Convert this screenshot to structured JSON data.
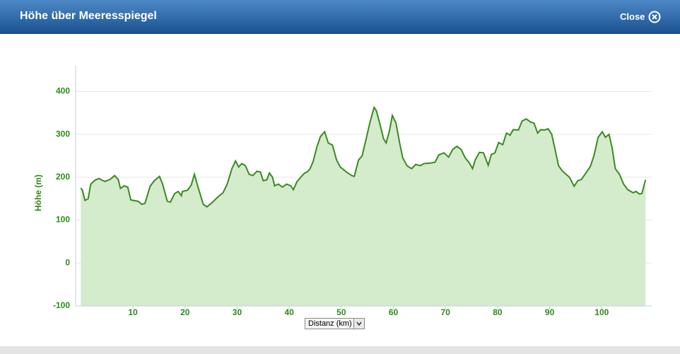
{
  "header": {
    "title": "Höhe über Meeresspiegel",
    "close": "Close"
  },
  "control": {
    "label": "Distanz (km)"
  },
  "chart_data": {
    "type": "area",
    "y_label": "Höhe (m)",
    "color": "#3a8a1f",
    "fill": "#d4ebcc",
    "grid": true,
    "xlim": [
      -1,
      110
    ],
    "ylim": [
      -100,
      460
    ],
    "xticks": [
      10,
      20,
      30,
      40,
      50,
      60,
      70,
      80,
      90,
      100
    ],
    "yticks": [
      -100,
      0,
      100,
      200,
      300,
      400
    ],
    "x": [
      0,
      0.3,
      0.8,
      1.4,
      1.9,
      2.8,
      3.5,
      4.6,
      5.6,
      6.5,
      7.2,
      7.6,
      8.3,
      9,
      9.6,
      11,
      11.7,
      12.3,
      13.3,
      14.1,
      15.1,
      15.7,
      16.6,
      17.2,
      18,
      18.7,
      19.3,
      19.5,
      20.5,
      21.2,
      21.8,
      22.5,
      23.5,
      24.2,
      25.2,
      26.3,
      27.3,
      28.1,
      29,
      29.7,
      30.3,
      30.9,
      31.6,
      32.3,
      33,
      33.8,
      34.5,
      35,
      35.7,
      36.2,
      36.8,
      37.2,
      37.9,
      38.7,
      39.5,
      40.3,
      40.8,
      41.5,
      42.2,
      42.9,
      43.6,
      44,
      44.6,
      45.3,
      46,
      46.8,
      47.5,
      48.3,
      49.1,
      49.8,
      51,
      52,
      52.5,
      53.3,
      54,
      54.7,
      55.5,
      56.3,
      56.7,
      57.4,
      58.1,
      58.6,
      59.2,
      59.8,
      60.5,
      61.2,
      61.8,
      62.6,
      63.5,
      64.3,
      65.1,
      65.9,
      67,
      68,
      68.7,
      69.7,
      70.6,
      71.4,
      72.2,
      73,
      73.8,
      74.6,
      75.2,
      75.7,
      76.5,
      77.3,
      78.2,
      78.8,
      79.5,
      80.2,
      81,
      81.7,
      82.4,
      83,
      84,
      84.7,
      85.5,
      86.3,
      87,
      87.7,
      88.3,
      89,
      89.7,
      90.4,
      91,
      91.7,
      92.4,
      93.8,
      94.7,
      95.4,
      96.1,
      96.9,
      97.8,
      98.5,
      99.3,
      100.1,
      100.7,
      101.4,
      102,
      102.6,
      103.4,
      104.2,
      105,
      106,
      106.6,
      107.2,
      107.7,
      108.1,
      108.4
    ],
    "values": [
      175,
      170,
      146,
      150,
      184,
      194,
      197,
      190,
      195,
      204,
      194,
      174,
      180,
      177,
      147,
      144,
      137,
      139,
      179,
      192,
      202,
      184,
      144,
      142,
      162,
      167,
      157,
      167,
      170,
      182,
      207,
      177,
      137,
      131,
      141,
      154,
      164,
      184,
      220,
      238,
      224,
      232,
      227,
      207,
      204,
      214,
      212,
      192,
      194,
      210,
      200,
      180,
      184,
      177,
      184,
      180,
      171,
      190,
      200,
      209,
      214,
      220,
      237,
      270,
      295,
      306,
      280,
      275,
      240,
      224,
      212,
      204,
      202,
      240,
      250,
      286,
      328,
      363,
      356,
      325,
      290,
      280,
      306,
      344,
      326,
      280,
      245,
      227,
      220,
      230,
      227,
      232,
      233,
      235,
      252,
      257,
      247,
      265,
      272,
      265,
      245,
      233,
      220,
      240,
      258,
      257,
      228,
      253,
      257,
      281,
      276,
      303,
      298,
      311,
      310,
      331,
      336,
      329,
      326,
      303,
      311,
      310,
      313,
      300,
      267,
      227,
      215,
      200,
      179,
      192,
      195,
      209,
      225,
      250,
      293,
      306,
      293,
      300,
      268,
      220,
      207,
      184,
      171,
      164,
      167,
      161,
      162,
      180,
      194
    ]
  }
}
